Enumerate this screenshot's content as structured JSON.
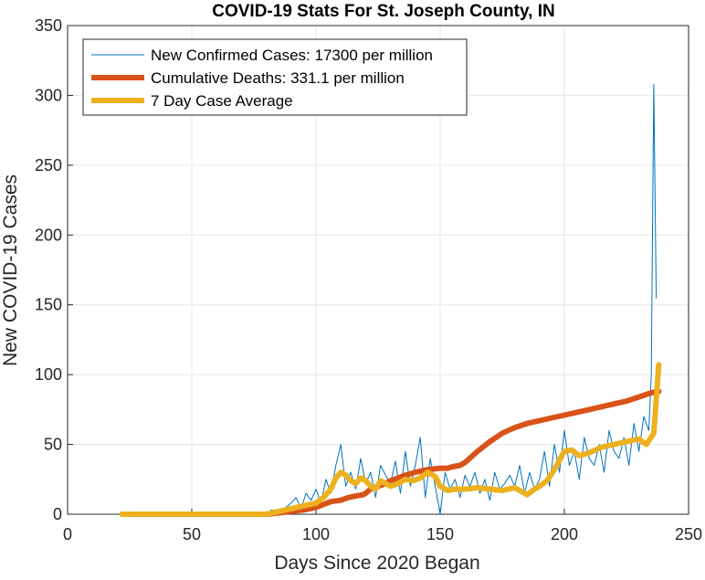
{
  "chart_data": {
    "type": "line",
    "title": "COVID-19 Stats For St. Joseph County, IN",
    "xlabel": "Days Since 2020 Began",
    "ylabel": "New COVID-19 Cases",
    "xlim": [
      0,
      250
    ],
    "ylim": [
      0,
      350
    ],
    "xticks": [
      0,
      50,
      100,
      150,
      200,
      250
    ],
    "yticks": [
      0,
      50,
      100,
      150,
      200,
      250,
      300,
      350
    ],
    "grid": true,
    "legend_position": "top-left",
    "series": [
      {
        "name": "New Confirmed Cases: 17300 per million",
        "color": "#0072BD",
        "style": "thin",
        "x": [
          22,
          80,
          82,
          85,
          88,
          90,
          92,
          94,
          96,
          98,
          100,
          102,
          104,
          106,
          108,
          110,
          112,
          114,
          116,
          118,
          120,
          122,
          124,
          126,
          128,
          130,
          132,
          134,
          136,
          138,
          140,
          142,
          144,
          146,
          148,
          150,
          152,
          154,
          156,
          158,
          160,
          162,
          164,
          166,
          168,
          170,
          172,
          174,
          176,
          178,
          180,
          182,
          184,
          186,
          188,
          190,
          192,
          194,
          196,
          198,
          200,
          202,
          204,
          206,
          208,
          210,
          212,
          214,
          216,
          218,
          220,
          222,
          224,
          226,
          228,
          230,
          232,
          234,
          235,
          236,
          237
        ],
        "y": [
          0,
          0,
          3,
          2,
          5,
          8,
          12,
          4,
          15,
          10,
          18,
          8,
          25,
          15,
          35,
          50,
          20,
          30,
          18,
          40,
          22,
          30,
          12,
          35,
          28,
          22,
          38,
          15,
          45,
          20,
          35,
          55,
          12,
          40,
          20,
          0,
          30,
          18,
          25,
          12,
          28,
          20,
          30,
          15,
          25,
          10,
          30,
          18,
          22,
          28,
          20,
          35,
          15,
          30,
          18,
          25,
          45,
          20,
          50,
          30,
          60,
          35,
          45,
          25,
          55,
          40,
          35,
          50,
          30,
          60,
          45,
          40,
          55,
          35,
          65,
          45,
          70,
          60,
          100,
          308,
          155
        ]
      },
      {
        "name": "Cumulative Deaths: 331.1 per million",
        "color": "#D95319",
        "style": "thick",
        "x": [
          22,
          80,
          85,
          90,
          95,
          100,
          103,
          106,
          110,
          113,
          116,
          119,
          120,
          122,
          125,
          128,
          130,
          133,
          136,
          140,
          145,
          150,
          153,
          155,
          158,
          160,
          165,
          170,
          175,
          180,
          185,
          190,
          195,
          200,
          205,
          210,
          215,
          220,
          225,
          230,
          235,
          238
        ],
        "y": [
          0,
          0,
          1,
          2,
          3,
          5,
          7,
          9,
          10,
          12,
          13,
          14,
          15,
          18,
          20,
          22,
          24,
          26,
          28,
          30,
          32,
          33,
          33,
          34,
          35,
          37,
          45,
          52,
          58,
          62,
          65,
          67,
          69,
          71,
          73,
          75,
          77,
          79,
          81,
          84,
          87,
          88
        ]
      },
      {
        "name": "7 Day Case Average",
        "color": "#EDB120",
        "style": "thick",
        "x": [
          22,
          80,
          85,
          90,
          95,
          100,
          103,
          106,
          108,
          110,
          112,
          114,
          116,
          118,
          120,
          122,
          124,
          126,
          128,
          130,
          133,
          136,
          139,
          142,
          145,
          148,
          150,
          153,
          156,
          160,
          165,
          170,
          175,
          180,
          183,
          185,
          188,
          190,
          193,
          196,
          199,
          200,
          203,
          206,
          210,
          215,
          220,
          225,
          230,
          233,
          236,
          238
        ],
        "y": [
          0,
          0,
          2,
          4,
          6,
          8,
          12,
          18,
          26,
          30,
          28,
          24,
          22,
          26,
          24,
          20,
          18,
          24,
          22,
          20,
          22,
          25,
          24,
          26,
          30,
          27,
          20,
          17,
          18,
          18,
          19,
          18,
          17,
          19,
          16,
          14,
          18,
          20,
          24,
          32,
          42,
          45,
          46,
          42,
          44,
          48,
          50,
          52,
          54,
          50,
          58,
          107
        ]
      }
    ]
  }
}
